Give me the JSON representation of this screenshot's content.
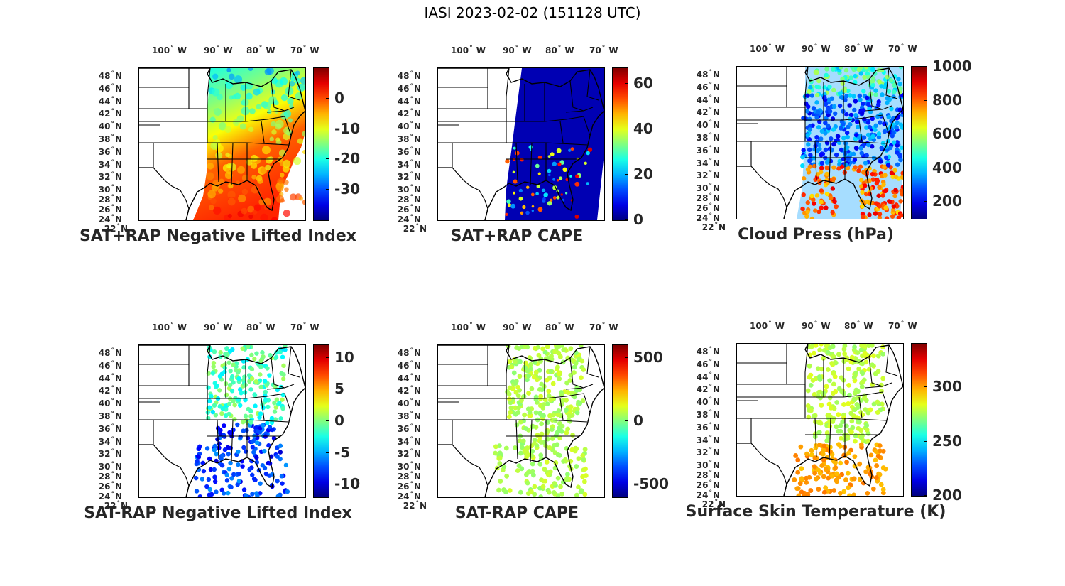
{
  "title": "IASI 2023-02-02 (151128 UTC)",
  "lon_labels": [
    "100",
    "90",
    "80",
    "70"
  ],
  "lon_suffix": "W",
  "lat_labels": [
    "48",
    "46",
    "44",
    "42",
    "40",
    "38",
    "36",
    "34",
    "32",
    "30",
    "28",
    "26",
    "24",
    "22"
  ],
  "lat_suffix": "N",
  "degree_symbol": "°",
  "panels": [
    {
      "title": "SAT+RAP Negative Lifted Index",
      "colorbar_ticks": [
        "0",
        "-10",
        "-20",
        "-30"
      ],
      "clim": [
        -40,
        10
      ]
    },
    {
      "title": "SAT+RAP CAPE",
      "colorbar_ticks": [
        "60",
        "40",
        "20",
        "0"
      ],
      "clim": [
        0,
        67
      ]
    },
    {
      "title": "Cloud Press (hPa)",
      "colorbar_ticks": [
        "1000",
        "800",
        "600",
        "400",
        "200"
      ],
      "clim": [
        100,
        1000
      ]
    },
    {
      "title": "SAT-RAP Negative Lifted Index",
      "colorbar_ticks": [
        "10",
        "5",
        "0",
        "-5",
        "-10"
      ],
      "clim": [
        -12,
        12
      ]
    },
    {
      "title": "SAT-RAP CAPE",
      "colorbar_ticks": [
        "500",
        "0",
        "-500"
      ],
      "clim": [
        -600,
        600
      ]
    },
    {
      "title": "Surface Skin Temperature (K)",
      "colorbar_ticks": [
        "300",
        "250",
        "200"
      ],
      "clim": [
        200,
        340
      ]
    }
  ],
  "colormap": "jet",
  "colors": {
    "jet_darkblue": "#00008f",
    "jet_blue": "#0000ff",
    "jet_cyan": "#00ffff",
    "jet_yellow": "#ffff00",
    "jet_red": "#ff0000",
    "jet_darkred": "#800000"
  }
}
